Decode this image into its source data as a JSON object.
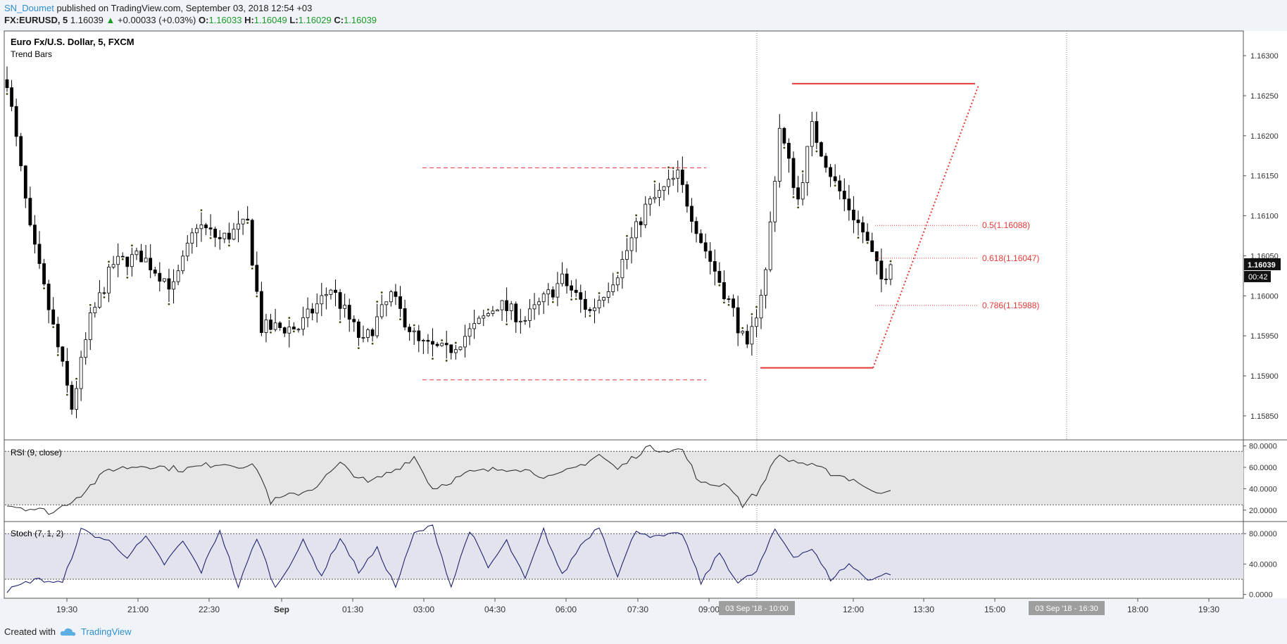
{
  "header": {
    "user": "SN_Doumet",
    "published": "published on TradingView.com, September 03, 2018 12:54 +03",
    "symbol": "FX:EURUSD, 5",
    "last": "1.16039",
    "change": "+0.00033 (+0.03%)",
    "o_label": "O:",
    "o": "1.16033",
    "h_label": "H:",
    "h": "1.16049",
    "l_label": "L:",
    "l": "1.16029",
    "c_label": "C:",
    "c": "1.16039"
  },
  "footer": {
    "created_with": "Created with",
    "brand": "TradingView"
  },
  "colors": {
    "up_fill": "#ffffff",
    "down_fill": "#000000",
    "fib": "#e53935",
    "rsi_line": "#333333",
    "stoch_line": "#1f2370",
    "rsi_band": "#e6e6e6",
    "stoch_band": "#e3e3ee",
    "change_up": "#1c9b2a"
  },
  "chart_data": [
    {
      "type": "candlestick",
      "title": "Euro Fx/U.S. Dollar, 5, FXCM",
      "subtitle": "Trend Bars",
      "y_ticks": [
        "1.16300",
        "1.16250",
        "1.16200",
        "1.16150",
        "1.16100",
        "1.16050",
        "1.16000",
        "1.15950",
        "1.15900",
        "1.15850"
      ],
      "ylim": [
        1.1582,
        1.1633
      ],
      "x_ticks": [
        "19:30",
        "21:00",
        "22:30",
        "Sep",
        "01:30",
        "03:00",
        "04:30",
        "06:00",
        "07:30",
        "09:00",
        "10:00",
        "12:00",
        "13:30",
        "15:00",
        "16:30",
        "18:00",
        "19:30"
      ],
      "last_price_label": "1.16039",
      "countdown_label": "00:42",
      "crosshair_x_label": "03 Sep '18 - 10:00",
      "crosshair2_x_label": "03 Sep '18 - 16:30",
      "anchors": [
        {
          "t": 0,
          "p": 1.1627
        },
        {
          "t": 5,
          "p": 1.1608
        },
        {
          "t": 10,
          "p": 1.1596
        },
        {
          "t": 14,
          "p": 1.1586
        },
        {
          "t": 18,
          "p": 1.1597
        },
        {
          "t": 23,
          "p": 1.1604
        },
        {
          "t": 29,
          "p": 1.1605
        },
        {
          "t": 36,
          "p": 1.1601
        },
        {
          "t": 41,
          "p": 1.1609
        },
        {
          "t": 46,
          "p": 1.1607
        },
        {
          "t": 52,
          "p": 1.1609
        },
        {
          "t": 55,
          "p": 1.1596
        },
        {
          "t": 63,
          "p": 1.1596
        },
        {
          "t": 70,
          "p": 1.1601
        },
        {
          "t": 77,
          "p": 1.1594
        },
        {
          "t": 83,
          "p": 1.16
        },
        {
          "t": 89,
          "p": 1.1594
        },
        {
          "t": 95,
          "p": 1.1593
        },
        {
          "t": 101,
          "p": 1.1596
        },
        {
          "t": 106,
          "p": 1.1599
        },
        {
          "t": 112,
          "p": 1.1597
        },
        {
          "t": 120,
          "p": 1.1602
        },
        {
          "t": 126,
          "p": 1.1598
        },
        {
          "t": 132,
          "p": 1.1603
        },
        {
          "t": 138,
          "p": 1.1611
        },
        {
          "t": 145,
          "p": 1.1615
        },
        {
          "t": 150,
          "p": 1.1607
        },
        {
          "t": 157,
          "p": 1.1598
        },
        {
          "t": 160,
          "p": 1.1593
        },
        {
          "t": 164,
          "p": 1.1603
        },
        {
          "t": 167,
          "p": 1.1621
        },
        {
          "t": 171,
          "p": 1.1612
        },
        {
          "t": 174,
          "p": 1.1621
        },
        {
          "t": 179,
          "p": 1.1614
        },
        {
          "t": 185,
          "p": 1.1608
        },
        {
          "t": 189,
          "p": 1.1602
        },
        {
          "t": 191,
          "p": 1.16039
        }
      ],
      "t_max": 191,
      "fib": {
        "low": 1.1591,
        "high": 1.16265,
        "levels": [
          {
            "label": "0.5(1.16088)",
            "price": 1.16088
          },
          {
            "label": "0.618(1.16047)",
            "price": 1.16047
          },
          {
            "label": "0.786(1.15988)",
            "price": 1.15988
          }
        ]
      },
      "dashed_range": {
        "top": 1.1616,
        "bottom": 1.15895
      }
    },
    {
      "type": "line",
      "title": "RSI (9, close)",
      "y_ticks": [
        "80.0000",
        "60.0000",
        "40.0000",
        "20.0000"
      ],
      "ylim": [
        10,
        85
      ],
      "band": [
        25,
        75
      ],
      "anchors": [
        {
          "t": 0,
          "p": 25
        },
        {
          "t": 10,
          "p": 18
        },
        {
          "t": 16,
          "p": 35
        },
        {
          "t": 22,
          "p": 58
        },
        {
          "t": 30,
          "p": 62
        },
        {
          "t": 38,
          "p": 58
        },
        {
          "t": 46,
          "p": 64
        },
        {
          "t": 54,
          "p": 60
        },
        {
          "t": 57,
          "p": 28
        },
        {
          "t": 66,
          "p": 40
        },
        {
          "t": 72,
          "p": 63
        },
        {
          "t": 78,
          "p": 45
        },
        {
          "t": 84,
          "p": 58
        },
        {
          "t": 88,
          "p": 70
        },
        {
          "t": 92,
          "p": 40
        },
        {
          "t": 100,
          "p": 55
        },
        {
          "t": 110,
          "p": 60
        },
        {
          "t": 118,
          "p": 50
        },
        {
          "t": 124,
          "p": 62
        },
        {
          "t": 128,
          "p": 72
        },
        {
          "t": 132,
          "p": 58
        },
        {
          "t": 138,
          "p": 78
        },
        {
          "t": 146,
          "p": 76
        },
        {
          "t": 150,
          "p": 44
        },
        {
          "t": 156,
          "p": 44
        },
        {
          "t": 159,
          "p": 25
        },
        {
          "t": 163,
          "p": 40
        },
        {
          "t": 166,
          "p": 70
        },
        {
          "t": 172,
          "p": 64
        },
        {
          "t": 178,
          "p": 55
        },
        {
          "t": 184,
          "p": 47
        },
        {
          "t": 187,
          "p": 36
        },
        {
          "t": 191,
          "p": 40
        }
      ]
    },
    {
      "type": "line",
      "title": "Stoch (7, 1, 2)",
      "y_ticks": [
        "80.0000",
        "40.0000",
        "0.0000"
      ],
      "ylim": [
        -5,
        95
      ],
      "band": [
        20,
        80
      ],
      "anchors": [
        {
          "t": 0,
          "p": 5
        },
        {
          "t": 6,
          "p": 20
        },
        {
          "t": 12,
          "p": 15
        },
        {
          "t": 16,
          "p": 85
        },
        {
          "t": 22,
          "p": 70
        },
        {
          "t": 26,
          "p": 50
        },
        {
          "t": 30,
          "p": 75
        },
        {
          "t": 34,
          "p": 40
        },
        {
          "t": 38,
          "p": 70
        },
        {
          "t": 42,
          "p": 30
        },
        {
          "t": 46,
          "p": 85
        },
        {
          "t": 50,
          "p": 10
        },
        {
          "t": 54,
          "p": 75
        },
        {
          "t": 58,
          "p": 8
        },
        {
          "t": 64,
          "p": 70
        },
        {
          "t": 68,
          "p": 25
        },
        {
          "t": 72,
          "p": 75
        },
        {
          "t": 76,
          "p": 30
        },
        {
          "t": 80,
          "p": 60
        },
        {
          "t": 84,
          "p": 10
        },
        {
          "t": 88,
          "p": 80
        },
        {
          "t": 92,
          "p": 90
        },
        {
          "t": 96,
          "p": 10
        },
        {
          "t": 100,
          "p": 85
        },
        {
          "t": 104,
          "p": 35
        },
        {
          "t": 108,
          "p": 70
        },
        {
          "t": 112,
          "p": 20
        },
        {
          "t": 116,
          "p": 85
        },
        {
          "t": 120,
          "p": 25
        },
        {
          "t": 124,
          "p": 65
        },
        {
          "t": 128,
          "p": 90
        },
        {
          "t": 132,
          "p": 25
        },
        {
          "t": 136,
          "p": 85
        },
        {
          "t": 140,
          "p": 75
        },
        {
          "t": 146,
          "p": 80
        },
        {
          "t": 150,
          "p": 15
        },
        {
          "t": 154,
          "p": 55
        },
        {
          "t": 158,
          "p": 15
        },
        {
          "t": 162,
          "p": 30
        },
        {
          "t": 166,
          "p": 85
        },
        {
          "t": 170,
          "p": 50
        },
        {
          "t": 174,
          "p": 60
        },
        {
          "t": 178,
          "p": 20
        },
        {
          "t": 182,
          "p": 40
        },
        {
          "t": 186,
          "p": 20
        },
        {
          "t": 191,
          "p": 28
        }
      ]
    }
  ]
}
